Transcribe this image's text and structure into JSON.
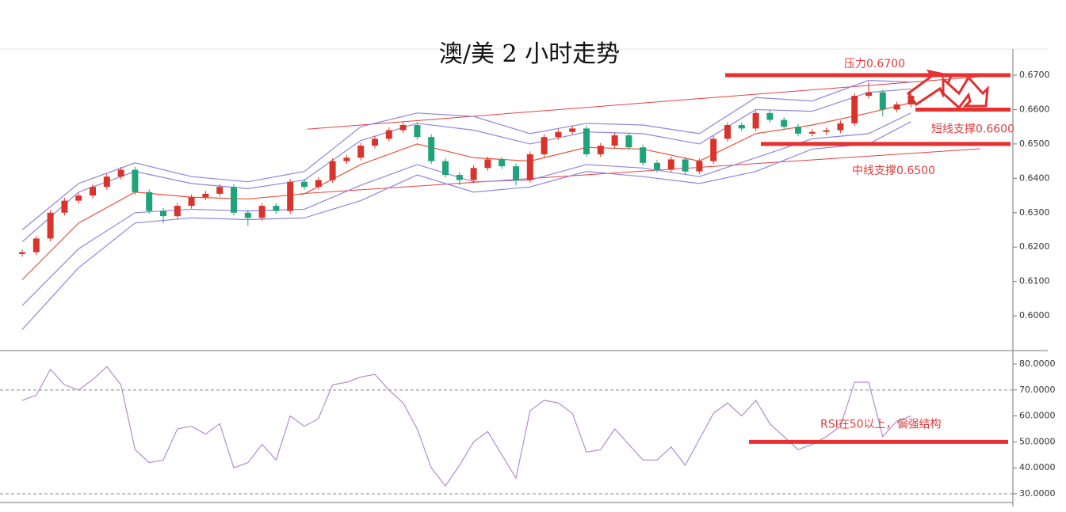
{
  "chart_data": [
    {
      "type": "candlestick",
      "title": "澳/美 2 小时走势",
      "open": [
        0.618,
        0.6185,
        0.6225,
        0.63,
        0.6335,
        0.635,
        0.6375,
        0.6405,
        0.6425,
        0.636,
        0.6305,
        0.629,
        0.632,
        0.6345,
        0.6355,
        0.6375,
        0.63,
        0.6285,
        0.632,
        0.6305,
        0.639,
        0.6375,
        0.6395,
        0.645,
        0.646,
        0.6495,
        0.6515,
        0.654,
        0.6555,
        0.652,
        0.645,
        0.641,
        0.6395,
        0.643,
        0.6455,
        0.6435,
        0.6395,
        0.647,
        0.652,
        0.6535,
        0.6545,
        0.647,
        0.6495,
        0.6525,
        0.649,
        0.6445,
        0.6425,
        0.6455,
        0.642,
        0.645,
        0.6515,
        0.6555,
        0.6545,
        0.659,
        0.657,
        0.655,
        0.653,
        0.6535,
        0.654,
        0.656,
        0.664,
        0.665,
        0.66,
        0.6615
      ],
      "high": [
        0.6193,
        0.6233,
        0.6308,
        0.6343,
        0.6358,
        0.6383,
        0.6413,
        0.6433,
        0.6433,
        0.6368,
        0.6313,
        0.6328,
        0.6353,
        0.6363,
        0.6383,
        0.6383,
        0.6308,
        0.6328,
        0.6328,
        0.6398,
        0.6398,
        0.6403,
        0.6458,
        0.6468,
        0.6503,
        0.6523,
        0.6548,
        0.6563,
        0.6563,
        0.6528,
        0.6458,
        0.6418,
        0.6438,
        0.6463,
        0.6463,
        0.6443,
        0.6478,
        0.6528,
        0.6543,
        0.6553,
        0.6553,
        0.6503,
        0.6533,
        0.6533,
        0.6498,
        0.6453,
        0.6463,
        0.6463,
        0.6458,
        0.6523,
        0.6563,
        0.6563,
        0.6598,
        0.6598,
        0.6578,
        0.6558,
        0.6543,
        0.6548,
        0.6568,
        0.6648,
        0.668,
        0.6658,
        0.6623,
        0.6648
      ],
      "low": [
        0.6172,
        0.6177,
        0.6217,
        0.6292,
        0.6327,
        0.6342,
        0.6367,
        0.6397,
        0.6352,
        0.6297,
        0.627,
        0.6282,
        0.6312,
        0.6337,
        0.6347,
        0.6292,
        0.6262,
        0.6277,
        0.6297,
        0.6297,
        0.6367,
        0.6367,
        0.6387,
        0.6442,
        0.6452,
        0.6487,
        0.6507,
        0.6532,
        0.6512,
        0.6442,
        0.6402,
        0.638,
        0.6387,
        0.6422,
        0.6427,
        0.638,
        0.6387,
        0.6462,
        0.6512,
        0.6527,
        0.6462,
        0.6462,
        0.6487,
        0.6482,
        0.6437,
        0.6417,
        0.6417,
        0.6412,
        0.6412,
        0.6442,
        0.6507,
        0.6537,
        0.6537,
        0.6562,
        0.6542,
        0.6522,
        0.6522,
        0.6527,
        0.6532,
        0.6552,
        0.6632,
        0.658,
        0.6592,
        0.6607
      ],
      "close": [
        0.6185,
        0.6225,
        0.63,
        0.6335,
        0.635,
        0.6375,
        0.6405,
        0.6425,
        0.636,
        0.6305,
        0.629,
        0.632,
        0.6345,
        0.6355,
        0.6375,
        0.63,
        0.6285,
        0.632,
        0.6305,
        0.639,
        0.6375,
        0.6395,
        0.645,
        0.646,
        0.6495,
        0.6515,
        0.654,
        0.6555,
        0.652,
        0.645,
        0.641,
        0.6395,
        0.643,
        0.6455,
        0.6435,
        0.6395,
        0.647,
        0.652,
        0.6535,
        0.6545,
        0.647,
        0.6495,
        0.6525,
        0.649,
        0.6445,
        0.6425,
        0.6455,
        0.642,
        0.645,
        0.6515,
        0.6555,
        0.6545,
        0.659,
        0.657,
        0.655,
        0.653,
        0.6535,
        0.654,
        0.656,
        0.664,
        0.665,
        0.66,
        0.6615,
        0.664
      ],
      "up_color": "#d9342b",
      "down_color": "#1fa37a",
      "band_x": [
        0,
        4,
        8,
        12,
        16,
        20,
        24,
        28,
        32,
        36,
        40,
        44,
        48,
        52,
        56,
        60,
        63
      ],
      "bands": [
        {
          "color": "#8f85e0",
          "values": [
            0.625,
            0.6385,
            0.6445,
            0.6405,
            0.639,
            0.642,
            0.655,
            0.659,
            0.658,
            0.653,
            0.656,
            0.6555,
            0.653,
            0.6635,
            0.6625,
            0.6685,
            0.668
          ]
        },
        {
          "color": "#8f85e0",
          "values": [
            0.6215,
            0.636,
            0.642,
            0.6385,
            0.637,
            0.6395,
            0.651,
            0.656,
            0.654,
            0.65,
            0.6535,
            0.653,
            0.65,
            0.66,
            0.6595,
            0.665,
            0.666
          ]
        },
        {
          "color": "#e8533c",
          "values": [
            0.6105,
            0.627,
            0.636,
            0.6345,
            0.634,
            0.6355,
            0.644,
            0.65,
            0.646,
            0.645,
            0.649,
            0.6485,
            0.645,
            0.653,
            0.6555,
            0.659,
            0.662
          ]
        },
        {
          "color": "#8f85e0",
          "values": [
            0.603,
            0.6195,
            0.63,
            0.631,
            0.6305,
            0.631,
            0.638,
            0.644,
            0.639,
            0.6395,
            0.644,
            0.643,
            0.6405,
            0.646,
            0.6515,
            0.653,
            0.659
          ]
        },
        {
          "color": "#8f85e0",
          "values": [
            0.596,
            0.614,
            0.627,
            0.6285,
            0.628,
            0.6285,
            0.6335,
            0.641,
            0.636,
            0.6375,
            0.642,
            0.6405,
            0.6385,
            0.642,
            0.6485,
            0.65,
            0.6565
          ]
        }
      ],
      "trendlines": [
        {
          "x": [
            20.2,
            68.7
          ],
          "values": [
            0.6543,
            0.6698
          ]
        },
        {
          "x": [
            19.7,
            67.9
          ],
          "values": [
            0.6355,
            0.6486
          ]
        }
      ],
      "levels": [
        {
          "value": 0.67,
          "label": "压力0.6700"
        },
        {
          "value": 0.66,
          "label": "短线支撑0.6600"
        },
        {
          "value": 0.65,
          "label": "中线支撑0.6500"
        }
      ],
      "ylim": [
        0.5899,
        0.6776
      ],
      "yticks": [
        {
          "value": 0.67,
          "label": "0.6700"
        },
        {
          "value": 0.66,
          "label": "0.6600"
        },
        {
          "value": 0.65,
          "label": "0.6500"
        },
        {
          "value": 0.64,
          "label": "0.6400"
        },
        {
          "value": 0.63,
          "label": "0.6300"
        },
        {
          "value": 0.62,
          "label": "0.6200"
        },
        {
          "value": 0.61,
          "label": "0.6100"
        },
        {
          "value": 0.6,
          "label": "0.6000"
        }
      ]
    },
    {
      "type": "line",
      "color": "#b58ad0",
      "values": [
        66,
        68,
        78,
        72,
        70,
        74,
        79,
        72,
        47,
        42,
        43,
        55,
        56,
        53,
        57,
        40,
        42,
        49,
        43,
        60,
        56,
        59,
        72,
        73,
        75,
        76,
        70,
        65,
        55,
        40,
        33,
        41,
        50,
        54,
        45,
        36,
        62,
        66,
        65,
        61,
        46,
        47,
        55,
        49,
        43,
        43,
        48,
        41,
        51,
        61,
        65,
        60,
        66,
        57,
        52,
        47,
        49,
        52,
        56,
        73,
        73,
        52,
        58,
        60
      ],
      "ref_lines": [
        70,
        30
      ],
      "levels": [
        {
          "value": 50,
          "label": "RSI在50以上，偏强结构"
        }
      ],
      "ylim": [
        25.1,
        85.2
      ],
      "yticks": [
        {
          "value": 80,
          "label": "80.0000"
        },
        {
          "value": 70,
          "label": "70.0000"
        },
        {
          "value": 60,
          "label": "60.0000"
        },
        {
          "value": 50,
          "label": "50.0000"
        },
        {
          "value": 40,
          "label": "40.0000"
        },
        {
          "value": 30,
          "label": "30.0000"
        }
      ]
    }
  ]
}
